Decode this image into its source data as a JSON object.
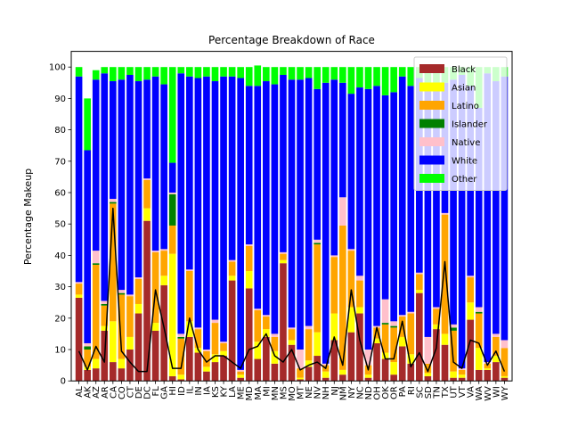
{
  "chart_data": {
    "type": "bar",
    "stacked": true,
    "title": "Percentage Breakdown of Race",
    "xlabel": "",
    "ylabel": "Percentage Makeup",
    "ylim": [
      0,
      105
    ],
    "yticks": [
      0,
      10,
      20,
      30,
      40,
      50,
      60,
      70,
      80,
      90,
      100
    ],
    "legend_position": "upper-right",
    "categories": [
      "AL",
      "AK",
      "AZ",
      "AR",
      "CA",
      "CO",
      "CT",
      "DE",
      "DC",
      "FL",
      "GA",
      "HI",
      "ID",
      "IL",
      "IN",
      "IA",
      "KS",
      "KY",
      "LA",
      "ME",
      "MD",
      "MA",
      "MI",
      "MN",
      "MS",
      "MO",
      "MT",
      "NE",
      "NV",
      "NH",
      "NJ",
      "NM",
      "NY",
      "NC",
      "ND",
      "OH",
      "OK",
      "OR",
      "PA",
      "RI",
      "SC",
      "SD",
      "TN",
      "TX",
      "UT",
      "VT",
      "VA",
      "WA",
      "WV",
      "WI",
      "WY"
    ],
    "series": [
      {
        "name": "Black",
        "color": "#a52a2a",
        "values": [
          26.5,
          3.5,
          4.0,
          16.0,
          6.0,
          4.0,
          10.0,
          21.5,
          51.0,
          16.0,
          30.5,
          1.5,
          0.5,
          14.0,
          9.0,
          3.0,
          6.0,
          8.0,
          32.0,
          1.0,
          29.5,
          7.0,
          14.0,
          5.5,
          37.5,
          11.5,
          0.5,
          4.5,
          8.0,
          1.0,
          13.0,
          2.0,
          15.5,
          21.5,
          1.0,
          12.0,
          7.0,
          2.0,
          11.0,
          5.5,
          28.0,
          1.5,
          16.5,
          11.5,
          1.0,
          1.0,
          19.5,
          3.5,
          3.5,
          6.0,
          1.0
        ]
      },
      {
        "name": "Asian",
        "color": "#ffff00",
        "values": [
          1.0,
          1.0,
          3.0,
          1.5,
          13.0,
          3.0,
          4.0,
          3.0,
          4.0,
          2.5,
          3.0,
          39.0,
          1.5,
          5.0,
          1.5,
          1.5,
          2.5,
          1.5,
          1.5,
          1.0,
          5.5,
          5.5,
          2.5,
          4.0,
          1.0,
          1.5,
          0.5,
          2.0,
          7.5,
          2.0,
          8.5,
          1.5,
          8.0,
          2.0,
          1.0,
          1.5,
          2.0,
          4.0,
          3.0,
          3.0,
          1.0,
          1.0,
          1.5,
          3.5,
          2.0,
          1.0,
          5.5,
          7.0,
          0.5,
          2.0,
          0.5
        ]
      },
      {
        "name": "Latino",
        "color": "#ffa500",
        "values": [
          3.5,
          5.5,
          30.0,
          6.5,
          37.5,
          20.5,
          13.0,
          8.0,
          9.0,
          22.5,
          8.0,
          9.0,
          11.5,
          16.0,
          6.0,
          5.0,
          10.0,
          2.5,
          4.5,
          1.0,
          8.0,
          10.0,
          4.0,
          4.5,
          2.0,
          3.5,
          3.0,
          10.0,
          28.0,
          2.0,
          18.0,
          46.0,
          18.0,
          8.5,
          3.0,
          3.5,
          9.0,
          11.0,
          6.5,
          13.0,
          5.0,
          3.0,
          5.0,
          38.0,
          13.0,
          1.5,
          8.0,
          11.0,
          1.5,
          6.0,
          9.0
        ]
      },
      {
        "name": "Islander",
        "color": "#008000",
        "values": [
          0,
          1.0,
          0.5,
          0.5,
          0.5,
          0.5,
          0,
          0,
          0,
          0,
          0,
          10.0,
          0.5,
          0,
          0,
          0,
          0,
          0,
          0,
          0,
          0,
          0,
          0,
          0,
          0,
          0,
          0,
          0,
          0.5,
          0,
          0,
          0,
          0,
          0,
          0,
          0,
          0.5,
          0.5,
          0,
          0,
          0,
          0,
          0,
          0,
          1.0,
          0,
          0,
          0.5,
          0,
          0,
          0
        ]
      },
      {
        "name": "Native",
        "color": "#ffc0cb",
        "values": [
          0.5,
          1.0,
          4.0,
          1.0,
          1.0,
          1.0,
          0.5,
          0.5,
          0.5,
          0.5,
          0.5,
          0.5,
          1.0,
          0.5,
          0.5,
          0.5,
          1.0,
          0.5,
          0.5,
          0.5,
          0.5,
          0.5,
          0.5,
          1.0,
          0.5,
          0.5,
          6.0,
          1.0,
          1.0,
          0.5,
          0.5,
          9.0,
          0.5,
          1.5,
          5.0,
          0.5,
          7.5,
          1.5,
          0.5,
          0.5,
          0.5,
          8.5,
          0.5,
          0.5,
          1.0,
          0.5,
          0.5,
          1.5,
          0.5,
          1.0,
          2.5
        ]
      },
      {
        "name": "White",
        "color": "#0000ff",
        "values": [
          65.5,
          61.5,
          54.5,
          72.5,
          37.5,
          67.0,
          70.0,
          62.5,
          31.5,
          55.5,
          52.5,
          9.5,
          83.0,
          61.5,
          79.5,
          87.0,
          76.0,
          84.5,
          58.5,
          93.0,
          50.5,
          71.0,
          74.5,
          79.5,
          56.5,
          79.0,
          86.0,
          79.0,
          48.0,
          89.5,
          56.0,
          36.5,
          49.5,
          60.0,
          83.0,
          76.5,
          65.0,
          73.0,
          76.0,
          72.0,
          62.0,
          79.5,
          71.0,
          41.5,
          78.0,
          93.5,
          60.5,
          63.5,
          92.0,
          80.5,
          84.0
        ]
      },
      {
        "name": "Other",
        "color": "#00ff00",
        "values": [
          3.0,
          16.5,
          3.0,
          2.0,
          4.5,
          4.0,
          2.5,
          4.5,
          4.0,
          3.0,
          5.5,
          30.5,
          2.0,
          3.0,
          3.5,
          3.0,
          4.5,
          3.0,
          3.0,
          3.5,
          6.0,
          6.5,
          4.5,
          5.5,
          2.5,
          4.0,
          4.0,
          3.5,
          7.0,
          5.0,
          4.0,
          5.0,
          8.5,
          6.5,
          7.0,
          6.0,
          9.0,
          8.0,
          3.0,
          6.0,
          3.5,
          6.5,
          5.5,
          5.0,
          4.0,
          2.5,
          6.0,
          13.0,
          2.0,
          4.5,
          3.0
        ]
      }
    ],
    "line": {
      "color": "#000000",
      "values": [
        9.5,
        3.5,
        11.0,
        6.0,
        55.0,
        9.5,
        6.0,
        3.0,
        3.0,
        29.0,
        17.0,
        4.0,
        4.0,
        20.0,
        10.0,
        6.0,
        8.0,
        8.0,
        6.0,
        4.0,
        10.0,
        11.0,
        15.0,
        8.0,
        6.0,
        10.0,
        3.5,
        5.0,
        6.0,
        4.0,
        14.0,
        5.0,
        29.0,
        13.0,
        3.5,
        17.0,
        7.0,
        7.0,
        19.0,
        4.5,
        9.0,
        3.0,
        10.5,
        38.0,
        6.0,
        4.0,
        13.0,
        12.0,
        5.0,
        9.5,
        3.0
      ]
    }
  }
}
